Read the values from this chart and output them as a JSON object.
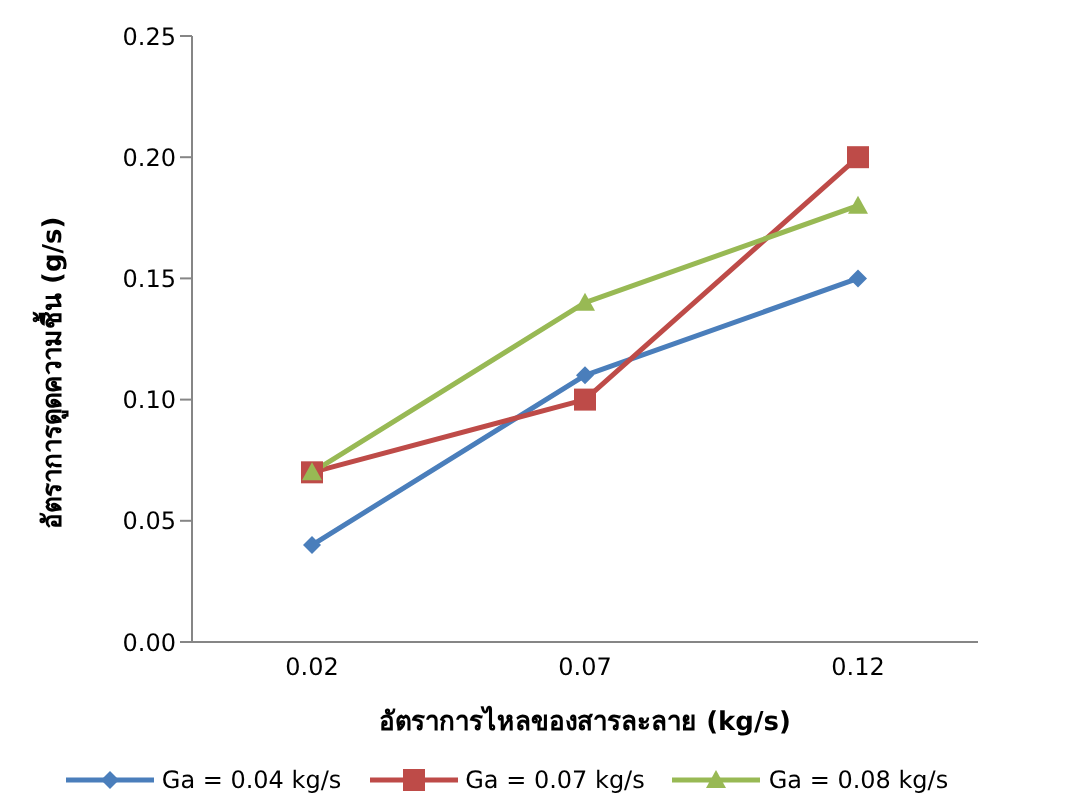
{
  "chart_data": {
    "type": "line",
    "xlabel": "อัตราการไหลของสารละลาย (kg/s)",
    "ylabel": "อัตราการดูดความชื้น (g/s)",
    "categories": [
      "0.02",
      "0.07",
      "0.12"
    ],
    "series": [
      {
        "name": "Ga = 0.04 kg/s",
        "color": "#4a7ebb",
        "marker": "diamond",
        "values": [
          0.04,
          0.11,
          0.15
        ]
      },
      {
        "name": "Ga = 0.07 kg/s",
        "color": "#be4b48",
        "marker": "square",
        "values": [
          0.07,
          0.1,
          0.2
        ]
      },
      {
        "name": "Ga = 0.08 kg/s",
        "color": "#98b954",
        "marker": "triangle",
        "values": [
          0.07,
          0.14,
          0.18
        ]
      }
    ],
    "ylim": [
      0,
      0.25
    ],
    "yticks": [
      {
        "value": 0,
        "label": "0.00"
      },
      {
        "value": 0.05,
        "label": "0.05"
      },
      {
        "value": 0.1,
        "label": "0.10"
      },
      {
        "value": 0.15,
        "label": "0.15"
      },
      {
        "value": 0.2,
        "label": "0.20"
      },
      {
        "value": 0.25,
        "label": "0.25"
      }
    ],
    "grid": false,
    "legend": "bottom"
  }
}
